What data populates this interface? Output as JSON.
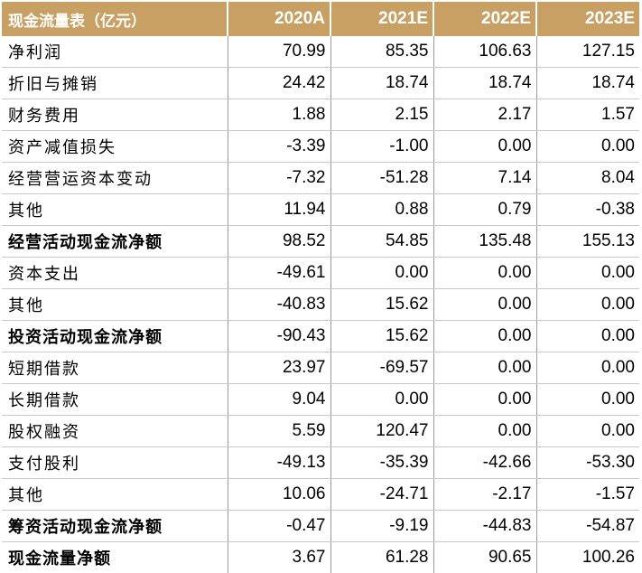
{
  "table": {
    "headers": [
      "现金流量表（亿元）",
      "2020A",
      "2021E",
      "2022E",
      "2023E"
    ],
    "rows": [
      {
        "label": "净利润",
        "values": [
          "70.99",
          "85.35",
          "106.63",
          "127.15"
        ],
        "bold": false
      },
      {
        "label": "折旧与摊销",
        "values": [
          "24.42",
          "18.74",
          "18.74",
          "18.74"
        ],
        "bold": false
      },
      {
        "label": "财务费用",
        "values": [
          "1.88",
          "2.15",
          "2.17",
          "1.57"
        ],
        "bold": false
      },
      {
        "label": "资产减值损失",
        "values": [
          "-3.39",
          "-1.00",
          "0.00",
          "0.00"
        ],
        "bold": false
      },
      {
        "label": "经营营运资本变动",
        "values": [
          "-7.32",
          "-51.28",
          "7.14",
          "8.04"
        ],
        "bold": false
      },
      {
        "label": "其他",
        "values": [
          "11.94",
          "0.88",
          "0.79",
          "-0.38"
        ],
        "bold": false
      },
      {
        "label": "经营活动现金流净额",
        "values": [
          "98.52",
          "54.85",
          "135.48",
          "155.13"
        ],
        "bold": true
      },
      {
        "label": "资本支出",
        "values": [
          "-49.61",
          "0.00",
          "0.00",
          "0.00"
        ],
        "bold": false
      },
      {
        "label": "其他",
        "values": [
          "-40.83",
          "15.62",
          "0.00",
          "0.00"
        ],
        "bold": false
      },
      {
        "label": "投资活动现金流净额",
        "values": [
          "-90.43",
          "15.62",
          "0.00",
          "0.00"
        ],
        "bold": true
      },
      {
        "label": "短期借款",
        "values": [
          "23.97",
          "-69.57",
          "0.00",
          "0.00"
        ],
        "bold": false
      },
      {
        "label": "长期借款",
        "values": [
          "9.04",
          "0.00",
          "0.00",
          "0.00"
        ],
        "bold": false
      },
      {
        "label": "股权融资",
        "values": [
          "5.59",
          "120.47",
          "0.00",
          "0.00"
        ],
        "bold": false
      },
      {
        "label": "支付股利",
        "values": [
          "-49.13",
          "-35.39",
          "-42.66",
          "-53.30"
        ],
        "bold": false
      },
      {
        "label": "其他",
        "values": [
          "10.06",
          "-24.71",
          "-2.17",
          "-1.57"
        ],
        "bold": false
      },
      {
        "label": "筹资活动现金流净额",
        "values": [
          "-0.47",
          "-9.19",
          "-44.83",
          "-54.87"
        ],
        "bold": true
      },
      {
        "label": "现金流量净额",
        "values": [
          "3.67",
          "61.28",
          "90.65",
          "100.26"
        ],
        "bold": true
      }
    ]
  },
  "colors": {
    "header_bg": "#C9A063",
    "header_text": "#FFFFFF"
  }
}
